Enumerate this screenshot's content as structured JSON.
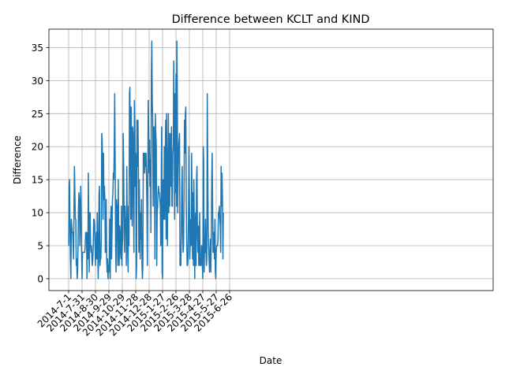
{
  "chart_data": {
    "type": "line",
    "title": "Difference between KCLT and KIND",
    "xlabel": "Date",
    "ylabel": "Difference",
    "x_start": "2014-7-1",
    "x_end": "2015-6-30",
    "xtick_labels": [
      "2014-7-1",
      "2014-7-31",
      "2014-8-30",
      "2014-9-29",
      "2014-10-29",
      "2014-11-28",
      "2014-12-28",
      "2015-1-27",
      "2015-2-26",
      "2015-3-28",
      "2015-4-27",
      "2015-5-27",
      "2015-6-26"
    ],
    "yticks": [
      0,
      5,
      10,
      15,
      20,
      25,
      30,
      35
    ],
    "ylim": [
      -1.8,
      37.8
    ],
    "grid": true,
    "line_color": "#1f77b4",
    "series": [
      {
        "values": [
          5,
          14,
          15,
          8,
          3,
          0,
          9,
          8,
          7,
          7,
          5,
          3,
          11,
          17,
          13,
          9,
          9,
          2,
          3,
          0,
          1,
          5,
          11,
          13,
          12,
          5,
          8,
          14,
          10,
          4,
          0,
          4,
          4,
          4,
          4,
          4,
          4,
          5,
          7,
          7,
          7,
          0,
          7,
          3,
          16,
          9,
          1,
          10,
          10,
          5,
          4,
          5,
          3,
          2,
          3,
          5,
          9,
          9,
          8,
          5,
          2,
          5,
          7,
          3,
          10,
          5,
          0,
          3,
          13,
          14,
          2,
          3,
          3,
          6,
          22,
          21,
          16,
          9,
          19,
          12,
          14,
          12,
          4,
          4,
          12,
          3,
          1,
          3,
          0,
          2,
          1,
          3,
          9,
          0,
          9,
          11,
          3,
          7,
          12,
          13,
          16,
          15,
          20,
          28,
          18,
          5,
          1,
          12,
          11,
          7,
          2,
          15,
          7,
          2,
          8,
          7,
          4,
          3,
          11,
          2,
          5,
          6,
          22,
          17,
          10,
          4,
          11,
          8,
          9,
          2,
          17,
          10,
          4,
          1,
          11,
          5,
          28,
          29,
          19,
          9,
          26,
          12,
          8,
          23,
          22,
          12,
          4,
          27,
          23,
          14,
          19,
          0,
          2,
          24,
          17,
          24,
          17,
          4,
          15,
          9,
          3,
          10,
          6,
          12,
          2,
          0,
          2,
          19,
          18,
          19,
          16,
          19,
          17,
          19,
          16,
          11,
          2,
          15,
          27,
          22,
          16,
          21,
          14,
          18,
          7,
          31,
          36,
          27,
          24,
          11,
          23,
          23,
          15,
          3,
          25,
          22,
          20,
          2,
          10,
          11,
          13,
          14,
          13,
          13,
          12,
          11,
          5,
          14,
          23,
          1,
          0,
          15,
          9,
          9,
          20,
          9,
          18,
          24,
          6,
          25,
          12,
          5,
          18,
          25,
          10,
          22,
          11,
          18,
          22,
          14,
          23,
          11,
          11,
          19,
          20,
          33,
          24,
          9,
          28,
          13,
          31,
          11,
          36,
          28,
          10,
          16,
          20,
          21,
          22,
          2,
          2,
          2,
          7,
          14,
          17,
          7,
          4,
          5,
          12,
          24,
          19,
          25,
          26,
          12,
          6,
          2,
          2,
          3,
          9,
          20,
          13,
          3,
          6,
          9,
          5,
          19,
          12,
          3,
          13,
          2,
          15,
          9,
          0,
          8,
          10,
          2,
          15,
          17,
          7,
          4,
          8,
          2,
          3,
          10,
          2,
          2,
          2,
          5,
          5,
          2,
          0,
          20,
          18,
          1,
          5,
          4,
          9,
          5,
          2,
          3,
          28,
          18,
          8,
          5,
          3,
          1,
          4,
          6,
          1,
          6,
          15,
          19,
          11,
          4,
          4,
          7,
          3,
          9,
          1,
          0,
          4,
          5,
          5,
          5,
          6,
          10,
          10,
          11,
          9,
          8,
          4,
          17,
          11,
          16,
          12,
          3,
          10
        ],
        "color": "#1f77b4"
      }
    ]
  }
}
